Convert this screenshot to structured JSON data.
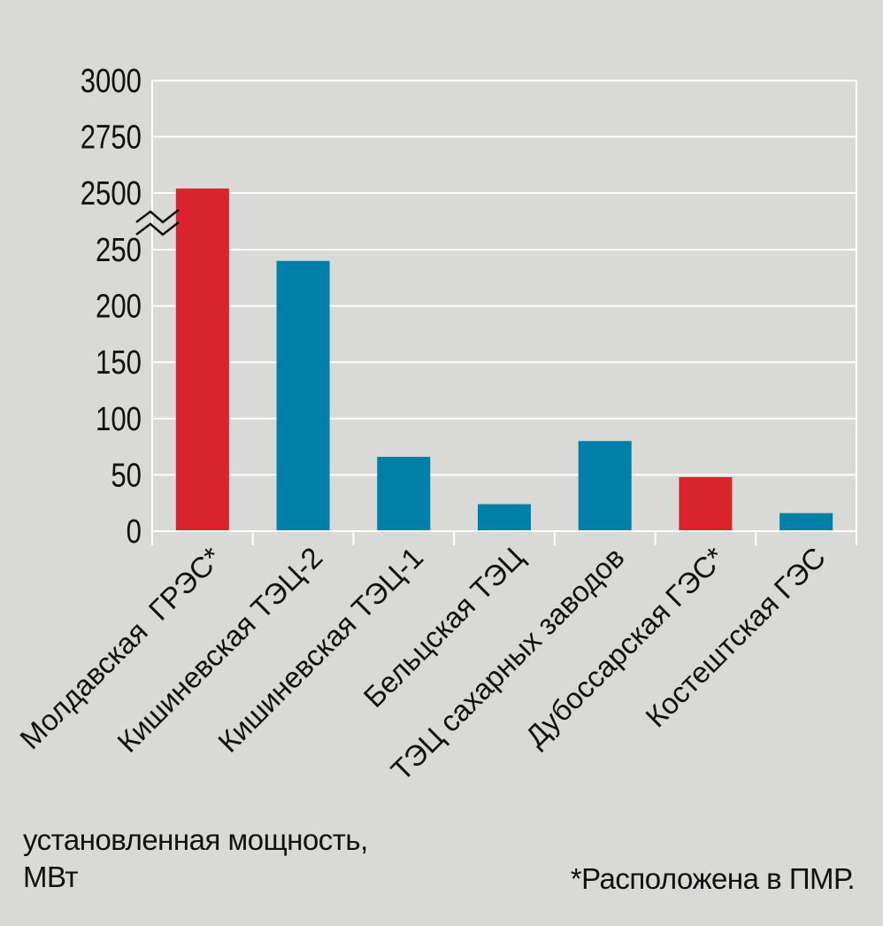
{
  "chart_data": {
    "type": "bar",
    "categories": [
      "Молдавская  ГРЭС*",
      "Кишиневская ТЭЦ-2",
      "Кишиневская ТЭЦ-1",
      "Бельцская ТЭЦ",
      "ТЭЦ сахарных заводов",
      "Дубоссарская ГЭС*",
      "Костештская ГЭС"
    ],
    "values": [
      2520,
      240,
      66,
      24,
      80,
      48,
      16
    ],
    "bar_colors": [
      "#d9232d",
      "#007fa8",
      "#007fa8",
      "#007fa8",
      "#007fa8",
      "#d9232d",
      "#007fa8"
    ],
    "y_ticks": [
      "0",
      "50",
      "100",
      "150",
      "200",
      "250",
      "2500",
      "2750",
      "3000"
    ],
    "y_scale": "broken axis: 0–250 linear, break, 2500–3000 linear",
    "ylabel": "установленная мощность,\nМВт",
    "footnote": "*Расположена в ПМР.",
    "grid": true,
    "background_color": "#d9d9d7"
  }
}
